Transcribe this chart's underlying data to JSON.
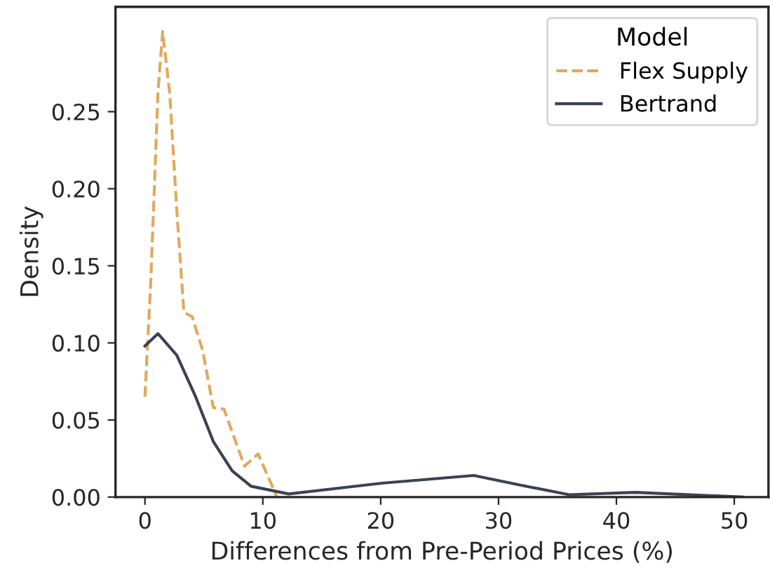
{
  "chart_data": {
    "type": "line",
    "xlabel": "Differences from Pre-Period Prices (%)",
    "ylabel": "Density",
    "legend_title": "Model",
    "legend": "top right",
    "xlim": [
      -2.5,
      52.9
    ],
    "ylim": [
      0,
      0.318
    ],
    "xticks": [
      0,
      10,
      20,
      30,
      40,
      50
    ],
    "yticks": [
      {
        "value": 0,
        "label": "0.00"
      },
      {
        "value": 0.05,
        "label": "0.05"
      },
      {
        "value": 0.1,
        "label": "0.10"
      },
      {
        "value": 0.15,
        "label": "0.15"
      },
      {
        "value": 0.2,
        "label": "0.20"
      },
      {
        "value": 0.25,
        "label": "0.25"
      }
    ],
    "grid": false,
    "series": [
      {
        "name": "Flex Supply",
        "color": "#e0a95a",
        "line_style": "dashed",
        "x": [
          0,
          0.5,
          1.1,
          1.5,
          2.1,
          2.7,
          3.3,
          4.0,
          4.9,
          5.8,
          6.7,
          8.45,
          9.6,
          11.2
        ],
        "values": [
          0.065,
          0.141,
          0.262,
          0.302,
          0.262,
          0.186,
          0.12,
          0.117,
          0.095,
          0.058,
          0.057,
          0.02,
          0.028,
          0.0
        ]
      },
      {
        "name": "Bertrand",
        "color": "#3b4252",
        "line_style": "solid",
        "x": [
          0,
          1.1,
          2.7,
          4.3,
          5.8,
          7.4,
          9,
          12.2,
          20.1,
          27.9,
          32,
          36,
          41.6,
          50.7
        ],
        "values": [
          0.098,
          0.106,
          0.092,
          0.065,
          0.036,
          0.017,
          0.007,
          0.002,
          0.009,
          0.014,
          0.0075,
          0.0015,
          0.003,
          0.0
        ]
      }
    ]
  }
}
